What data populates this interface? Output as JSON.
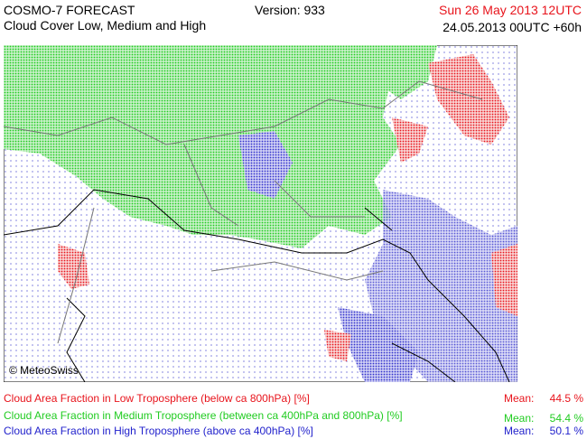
{
  "header": {
    "title": "COSMO-7 FORECAST",
    "subtitle": "Cloud Cover Low, Medium and High",
    "version": "Version: 933",
    "valid_time": "Sun 26 May 2013 12UTC",
    "run": "24.05.2013 00UTC +60h"
  },
  "map": {
    "copyright": "© MeteoSwiss"
  },
  "legend": [
    {
      "label": "Cloud Area Fraction in Low Troposphere (below ca 800hPa) [%]",
      "mean_label": "Mean:",
      "mean": "44.5 %",
      "color": "#e8141c"
    },
    {
      "label": "Cloud Area Fraction in Medium Troposphere (between ca 400hPa and 800hPa) [%]",
      "mean_label": "Mean:",
      "mean": "54.4 %",
      "color": "#22cc22"
    },
    {
      "label": "Cloud Area Fraction in High Troposphere (above ca 400hPa) [%]",
      "mean_label": "Mean:",
      "mean": "50.1 %",
      "color": "#2222cc"
    }
  ]
}
